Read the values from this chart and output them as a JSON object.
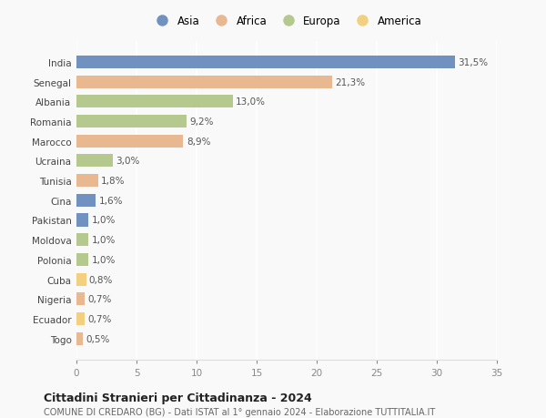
{
  "countries": [
    "India",
    "Senegal",
    "Albania",
    "Romania",
    "Marocco",
    "Ucraina",
    "Tunisia",
    "Cina",
    "Pakistan",
    "Moldova",
    "Polonia",
    "Cuba",
    "Nigeria",
    "Ecuador",
    "Togo"
  ],
  "values": [
    31.5,
    21.3,
    13.0,
    9.2,
    8.9,
    3.0,
    1.8,
    1.6,
    1.0,
    1.0,
    1.0,
    0.8,
    0.7,
    0.7,
    0.5
  ],
  "labels": [
    "31,5%",
    "21,3%",
    "13,0%",
    "9,2%",
    "8,9%",
    "3,0%",
    "1,8%",
    "1,6%",
    "1,0%",
    "1,0%",
    "1,0%",
    "0,8%",
    "0,7%",
    "0,7%",
    "0,5%"
  ],
  "continents": [
    "Asia",
    "Africa",
    "Europa",
    "Europa",
    "Africa",
    "Europa",
    "Africa",
    "Asia",
    "Asia",
    "Europa",
    "Europa",
    "America",
    "Africa",
    "America",
    "Africa"
  ],
  "colors": {
    "Asia": "#7191c0",
    "Africa": "#e8b990",
    "Europa": "#b5c98e",
    "America": "#f2d080"
  },
  "xlim": [
    0,
    35
  ],
  "xticks": [
    0,
    5,
    10,
    15,
    20,
    25,
    30,
    35
  ],
  "title": "Cittadini Stranieri per Cittadinanza - 2024",
  "subtitle": "COMUNE DI CREDARO (BG) - Dati ISTAT al 1° gennaio 2024 - Elaborazione TUTTITALIA.IT",
  "bg_color": "#f9f9f9",
  "bar_height": 0.65,
  "label_fontsize": 7.5,
  "ytick_fontsize": 7.5,
  "xtick_fontsize": 7.5,
  "legend_order": [
    "Asia",
    "Africa",
    "Europa",
    "America"
  ]
}
